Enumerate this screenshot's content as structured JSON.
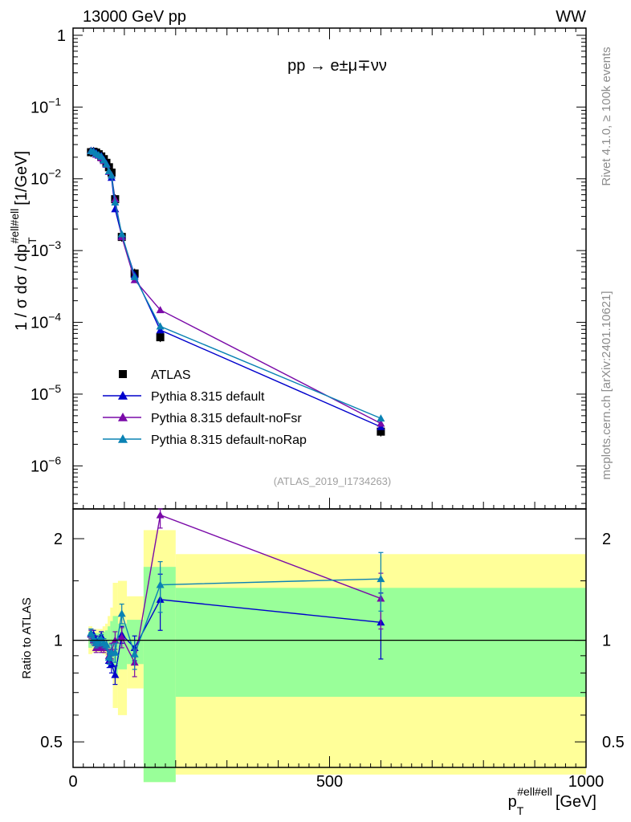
{
  "header": {
    "left": "13000 GeV pp",
    "right": "WW",
    "process": "pp → e±μ∓νν"
  },
  "side_labels": {
    "rivet": "Rivet 4.1.0, ≥ 100k events",
    "mcplots": "mcplots.cern.ch [arXiv:2401.10621]"
  },
  "analysis_ref": "(ATLAS_2019_I1734263)",
  "colors": {
    "atlas": "#000000",
    "default": "#0000cc",
    "noFsr": "#7a0aa8",
    "noRap": "#0a82b4",
    "band_inner": "#99ff99",
    "band_outer": "#ffff99"
  },
  "chart_data": [
    {
      "type": "scatter",
      "panel": "main",
      "ylabel_main": "1 / σ  dσ / dp",
      "ylabel_sup": "#ell#ell",
      "ylabel_sub": "T",
      "ylabel_unit": "[1/GeV]",
      "xlabel": "p",
      "xlabel_sup": "#ell#ell",
      "xlabel_sub": "T",
      "xlabel_unit": "[GeV]",
      "xlim": [
        0,
        1000
      ],
      "ylim_log10": [
        -6.6,
        0.1
      ],
      "yscale": "log",
      "y_ticks": [
        {
          "mant": "1",
          "exp": ""
        },
        {
          "mant": "10",
          "exp": "−1"
        },
        {
          "mant": "10",
          "exp": "−2"
        },
        {
          "mant": "10",
          "exp": "−3"
        },
        {
          "mant": "10",
          "exp": "−4"
        },
        {
          "mant": "10",
          "exp": "−5"
        },
        {
          "mant": "10",
          "exp": "−6"
        }
      ],
      "x": [
        35,
        40,
        45,
        50,
        55,
        60,
        65,
        70,
        75,
        82,
        95,
        120,
        170,
        600
      ],
      "series": [
        {
          "name": "ATLAS",
          "key": "atlas",
          "marker": "square",
          "values": [
            0.0235,
            0.0238,
            0.0232,
            0.022,
            0.0205,
            0.0188,
            0.0167,
            0.0145,
            0.0122,
            0.0052,
            0.00155,
            0.00048,
            6.2e-05,
            3e-06
          ]
        },
        {
          "name": "Pythia 8.315 default",
          "key": "default",
          "marker": "triangle",
          "values": [
            0.0248,
            0.0245,
            0.023,
            0.0212,
            0.021,
            0.0185,
            0.0163,
            0.0126,
            0.0104,
            0.0038,
            0.0016,
            0.000455,
            7.8e-05,
            3.5e-06
          ]
        },
        {
          "name": "Pythia 8.315 default-noFsr",
          "key": "noFsr",
          "marker": "triangle",
          "values": [
            0.0245,
            0.0238,
            0.0218,
            0.0212,
            0.0195,
            0.0178,
            0.0158,
            0.0126,
            0.0113,
            0.0052,
            0.00155,
            0.00039,
            0.000149,
            3.9e-06
          ]
        },
        {
          "name": "Pythia 8.315 default-noRap",
          "key": "noRap",
          "marker": "triangle",
          "values": [
            0.0245,
            0.024,
            0.0225,
            0.0215,
            0.0205,
            0.0182,
            0.016,
            0.0128,
            0.0112,
            0.0047,
            0.0017,
            0.00043,
            8.8e-05,
            4.6e-06
          ]
        }
      ]
    },
    {
      "type": "line",
      "panel": "ratio",
      "ylabel": "Ratio to ATLAS",
      "xlim": [
        0,
        1000
      ],
      "yscale": "log",
      "ylim": [
        0.42,
        2.45
      ],
      "y_ticks": [
        "0.5",
        "1",
        "2"
      ],
      "x_ticks": [
        "0",
        "500",
        "1000"
      ],
      "x": [
        35,
        40,
        45,
        50,
        55,
        60,
        65,
        70,
        75,
        82,
        95,
        120,
        170,
        600
      ],
      "bands": {
        "edges": [
          30,
          37.5,
          42.5,
          47.5,
          52.5,
          57.5,
          62.5,
          67.5,
          72.5,
          77.5,
          87.5,
          105,
          137.5,
          200,
          1000
        ],
        "inner": [
          [
            0.95,
            1.06
          ],
          [
            0.96,
            1.05
          ],
          [
            0.96,
            1.05
          ],
          [
            0.96,
            1.05
          ],
          [
            0.96,
            1.05
          ],
          [
            0.95,
            1.06
          ],
          [
            0.94,
            1.07
          ],
          [
            0.92,
            1.1
          ],
          [
            0.88,
            1.14
          ],
          [
            0.78,
            1.18
          ],
          [
            0.82,
            1.12
          ],
          [
            0.85,
            1.15
          ],
          [
            0.38,
            1.65
          ],
          [
            0.68,
            1.43
          ]
        ],
        "outer": [
          [
            0.91,
            1.1
          ],
          [
            0.92,
            1.08
          ],
          [
            0.92,
            1.08
          ],
          [
            0.92,
            1.08
          ],
          [
            0.92,
            1.08
          ],
          [
            0.91,
            1.1
          ],
          [
            0.9,
            1.12
          ],
          [
            0.87,
            1.18
          ],
          [
            0.82,
            1.25
          ],
          [
            0.63,
            1.48
          ],
          [
            0.6,
            1.5
          ],
          [
            0.72,
            1.35
          ],
          [
            0.38,
            2.12
          ],
          [
            0.4,
            1.8
          ]
        ]
      },
      "series": [
        {
          "name": "Pythia 8.315 default",
          "key": "default",
          "values": [
            1.05,
            1.04,
            1.0,
            0.98,
            1.03,
            0.98,
            0.97,
            0.87,
            0.85,
            0.79,
            1.04,
            0.95,
            1.32,
            1.13
          ],
          "errors": [
            0.03,
            0.03,
            0.03,
            0.03,
            0.03,
            0.03,
            0.03,
            0.04,
            0.05,
            0.05,
            0.06,
            0.08,
            0.25,
            0.25
          ]
        },
        {
          "name": "Pythia 8.315 default-noFsr",
          "key": "noFsr",
          "values": [
            1.04,
            1.0,
            0.95,
            0.97,
            0.95,
            0.95,
            0.97,
            0.9,
            0.93,
            1.0,
            1.02,
            0.86,
            2.35,
            1.33
          ],
          "errors": [
            0.03,
            0.03,
            0.03,
            0.03,
            0.03,
            0.03,
            0.03,
            0.04,
            0.05,
            0.06,
            0.07,
            0.08,
            0.2,
            0.25
          ]
        },
        {
          "name": "Pythia 8.315 default-noRap",
          "key": "noRap",
          "values": [
            1.05,
            1.01,
            0.98,
            0.99,
            1.01,
            0.98,
            0.97,
            0.89,
            0.92,
            0.92,
            1.2,
            0.91,
            1.46,
            1.52
          ],
          "errors": [
            0.03,
            0.03,
            0.03,
            0.03,
            0.03,
            0.03,
            0.03,
            0.04,
            0.05,
            0.06,
            0.08,
            0.09,
            0.25,
            0.3
          ]
        }
      ]
    }
  ]
}
